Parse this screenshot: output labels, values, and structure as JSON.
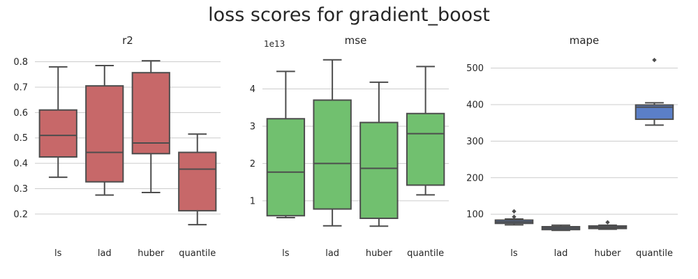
{
  "figure": {
    "title": "loss scores for gradient_boost"
  },
  "chart_data": [
    {
      "type": "box",
      "title": "r2",
      "color": "#c76869",
      "categories": [
        "ls",
        "lad",
        "huber",
        "quantile"
      ],
      "yticks": [
        0.2,
        0.3,
        0.4,
        0.5,
        0.6,
        0.7,
        0.8
      ],
      "ytick_labels": [
        "0.2",
        "0.3",
        "0.4",
        "0.5",
        "0.6",
        "0.7",
        "0.8"
      ],
      "ylim": [
        0.12,
        0.84
      ],
      "offset_text": "",
      "grid": "horizontal",
      "boxes": [
        {
          "category": "ls",
          "whislo": 0.345,
          "q1": 0.425,
          "med": 0.51,
          "q3": 0.61,
          "whishi": 0.78,
          "fliers": []
        },
        {
          "category": "lad",
          "whislo": 0.275,
          "q1": 0.327,
          "med": 0.443,
          "q3": 0.705,
          "whishi": 0.785,
          "fliers": []
        },
        {
          "category": "huber",
          "whislo": 0.285,
          "q1": 0.438,
          "med": 0.48,
          "q3": 0.757,
          "whishi": 0.804,
          "fliers": []
        },
        {
          "category": "quantile",
          "whislo": 0.158,
          "q1": 0.213,
          "med": 0.377,
          "q3": 0.443,
          "whishi": 0.515,
          "fliers": []
        }
      ]
    },
    {
      "type": "box",
      "title": "mse",
      "color": "#71c06f",
      "categories": [
        "ls",
        "lad",
        "huber",
        "quantile"
      ],
      "yticks": [
        1,
        2,
        3,
        4
      ],
      "ytick_labels": [
        "1",
        "2",
        "3",
        "4"
      ],
      "ylim": [
        0.1,
        5.0
      ],
      "offset_text": "1e13",
      "grid": "horizontal",
      "boxes": [
        {
          "category": "ls",
          "whislo": 0.55,
          "q1": 0.6,
          "med": 1.77,
          "q3": 3.2,
          "whishi": 4.47,
          "fliers": []
        },
        {
          "category": "lad",
          "whislo": 0.33,
          "q1": 0.78,
          "med": 2.0,
          "q3": 3.7,
          "whishi": 4.78,
          "fliers": []
        },
        {
          "category": "huber",
          "whislo": 0.32,
          "q1": 0.53,
          "med": 1.87,
          "q3": 3.1,
          "whishi": 4.18,
          "fliers": []
        },
        {
          "category": "quantile",
          "whislo": 1.16,
          "q1": 1.42,
          "med": 2.8,
          "q3": 3.34,
          "whishi": 4.6,
          "fliers": []
        }
      ]
    },
    {
      "type": "box",
      "title": "mape",
      "color": "#5b7fc8",
      "categories": [
        "ls",
        "lad",
        "huber",
        "quantile"
      ],
      "yticks": [
        100,
        200,
        300,
        400,
        500
      ],
      "ytick_labels": [
        "100",
        "200",
        "300",
        "400",
        "500"
      ],
      "ylim": [
        45,
        545
      ],
      "offset_text": "",
      "grid": "horizontal",
      "boxes": [
        {
          "category": "ls",
          "whislo": 71,
          "q1": 75,
          "med": 79,
          "q3": 84,
          "whishi": 87,
          "fliers": [
            93,
            108
          ]
        },
        {
          "category": "lad",
          "whislo": 56,
          "q1": 58,
          "med": 62,
          "q3": 66,
          "whishi": 70,
          "fliers": []
        },
        {
          "category": "huber",
          "whislo": 59,
          "q1": 61,
          "med": 64,
          "q3": 68,
          "whishi": 70,
          "fliers": [
            78
          ]
        },
        {
          "category": "quantile",
          "whislo": 344,
          "q1": 360,
          "med": 393,
          "q3": 399,
          "whishi": 405,
          "fliers": [
            522
          ]
        }
      ]
    }
  ]
}
